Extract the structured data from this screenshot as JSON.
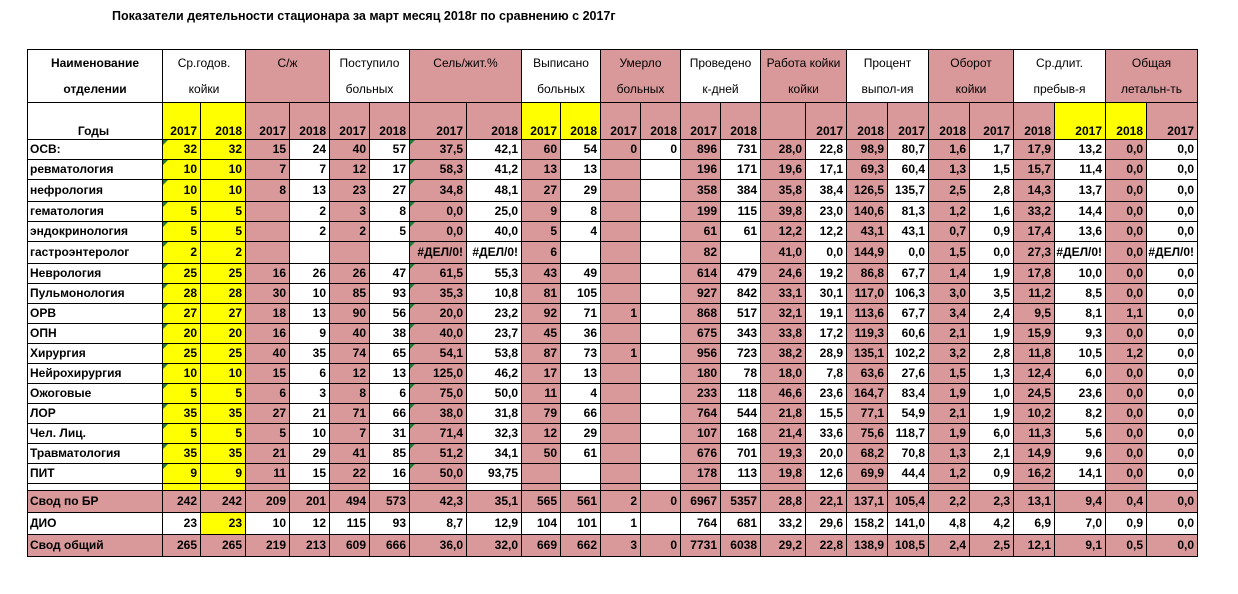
{
  "title": "Показатели деятельности стационара за март месяц 2018г по сравнению с 2017г",
  "header": {
    "row1": [
      "Наименование",
      "Ср.годов.",
      "С/ж",
      "Поступило",
      "Сель/жит.%",
      "Выписано",
      "Умерло",
      "Проведено",
      "Работа койки",
      "Процент",
      "Оборот",
      "Ср.длит.",
      "Общая"
    ],
    "row2": [
      "отделении",
      "койки",
      "",
      "больных",
      "",
      "больных",
      "больных",
      "к-дней",
      "койки",
      "выпол-ия",
      "койки",
      "пребыв-я",
      "летальн-ть"
    ],
    "years_label": "Годы",
    "years": [
      "2017",
      "2018",
      "2017",
      "2018",
      "2017",
      "2018",
      "2017",
      "2018",
      "2017",
      "2018",
      "2017",
      "2018",
      "2017",
      "2018",
      "",
      "2017",
      "2018",
      "2017",
      "2018",
      "2017",
      "2018",
      "2017",
      "2018",
      "2017"
    ]
  },
  "rows": [
    {
      "name": "ОСВ:",
      "cells": [
        "32",
        "32",
        "15",
        "24",
        "40",
        "57",
        "37,5",
        "42,1",
        "60",
        "54",
        "0",
        "0",
        "896",
        "731",
        "28,0",
        "22,8",
        "98,9",
        "80,7",
        "1,6",
        "1,7",
        "17,9",
        "13,2",
        "0,0",
        "0,0"
      ]
    },
    {
      "name": " ревматология",
      "cells": [
        "10",
        "10",
        "7",
        "7",
        "12",
        "17",
        "58,3",
        "41,2",
        "13",
        "13",
        "",
        "",
        "196",
        "171",
        "19,6",
        "17,1",
        "69,3",
        "60,4",
        "1,3",
        "1,5",
        "15,7",
        "11,4",
        "0,0",
        "0,0"
      ]
    },
    {
      "name": "нефрология",
      "cells": [
        "10",
        "10",
        "8",
        "13",
        "23",
        "27",
        "34,8",
        "48,1",
        "27",
        "29",
        "",
        "",
        "358",
        "384",
        "35,8",
        "38,4",
        "126,5",
        "135,7",
        "2,5",
        "2,8",
        "14,3",
        "13,7",
        "0,0",
        "0,0"
      ]
    },
    {
      "name": "гематология",
      "cells": [
        "5",
        "5",
        "",
        "2",
        "3",
        "8",
        "0,0",
        "25,0",
        "9",
        "8",
        "",
        "",
        "199",
        "115",
        "39,8",
        "23,0",
        "140,6",
        "81,3",
        "1,2",
        "1,6",
        "33,2",
        "14,4",
        "0,0",
        "0,0"
      ]
    },
    {
      "name": "эндокринология",
      "cells": [
        "5",
        "5",
        "",
        "2",
        "2",
        "5",
        "0,0",
        "40,0",
        "5",
        "4",
        "",
        "",
        "61",
        "61",
        "12,2",
        "12,2",
        "43,1",
        "43,1",
        "0,7",
        "0,9",
        "17,4",
        "13,6",
        "0,0",
        "0,0"
      ]
    },
    {
      "name": "гастроэнтеролог",
      "cells": [
        "2",
        "2",
        "",
        "",
        "",
        "",
        "#ДЕЛ/0!",
        "#ДЕЛ/0!",
        "6",
        "",
        "",
        "",
        "82",
        "",
        "41,0",
        "0,0",
        "144,9",
        "0,0",
        "1,5",
        "0,0",
        "27,3",
        "#ДЕЛ/0!",
        "0,0",
        "#ДЕЛ/0!"
      ]
    },
    {
      "name": "Неврология",
      "cells": [
        "25",
        "25",
        "16",
        "26",
        "26",
        "47",
        "61,5",
        "55,3",
        "43",
        "49",
        "",
        "",
        "614",
        "479",
        "24,6",
        "19,2",
        "86,8",
        "67,7",
        "1,4",
        "1,9",
        "17,8",
        "10,0",
        "0,0",
        "0,0"
      ]
    },
    {
      "name": "Пульмонология",
      "cells": [
        "28",
        "28",
        "30",
        "10",
        "85",
        "93",
        "35,3",
        "10,8",
        "81",
        "105",
        "",
        "",
        "927",
        "842",
        "33,1",
        "30,1",
        "117,0",
        "106,3",
        "3,0",
        "3,5",
        "11,2",
        "8,5",
        "0,0",
        "0,0"
      ]
    },
    {
      "name": "ОРВ",
      "cells": [
        "27",
        "27",
        "18",
        "13",
        "90",
        "56",
        "20,0",
        "23,2",
        "92",
        "71",
        "1",
        "",
        "868",
        "517",
        "32,1",
        "19,1",
        "113,6",
        "67,7",
        "3,4",
        "2,4",
        "9,5",
        "8,1",
        "1,1",
        "0,0"
      ]
    },
    {
      "name": "ОПН",
      "cells": [
        "20",
        "20",
        "16",
        "9",
        "40",
        "38",
        "40,0",
        "23,7",
        "45",
        "36",
        "",
        "",
        "675",
        "343",
        "33,8",
        "17,2",
        "119,3",
        "60,6",
        "2,1",
        "1,9",
        "15,9",
        "9,3",
        "0,0",
        "0,0"
      ]
    },
    {
      "name": "Хирургия",
      "cells": [
        "25",
        "25",
        "40",
        "35",
        "74",
        "65",
        "54,1",
        "53,8",
        "87",
        "73",
        "1",
        "",
        "956",
        "723",
        "38,2",
        "28,9",
        "135,1",
        "102,2",
        "3,2",
        "2,8",
        "11,8",
        "10,5",
        "1,2",
        "0,0"
      ]
    },
    {
      "name": "Нейрохирургия",
      "cells": [
        "10",
        "10",
        "15",
        "6",
        "12",
        "13",
        "125,0",
        "46,2",
        "17",
        "13",
        "",
        "",
        "180",
        "78",
        "18,0",
        "7,8",
        "63,6",
        "27,6",
        "1,5",
        "1,3",
        "12,4",
        "6,0",
        "0,0",
        "0,0"
      ]
    },
    {
      "name": "Ожоговые",
      "cells": [
        "5",
        "5",
        "6",
        "3",
        "8",
        "6",
        "75,0",
        "50,0",
        "11",
        "4",
        "",
        "",
        "233",
        "118",
        "46,6",
        "23,6",
        "164,7",
        "83,4",
        "1,9",
        "1,0",
        "24,5",
        "23,6",
        "0,0",
        "0,0"
      ]
    },
    {
      "name": "ЛОР",
      "cells": [
        "35",
        "35",
        "27",
        "21",
        "71",
        "66",
        "38,0",
        "31,8",
        "79",
        "66",
        "",
        "",
        "764",
        "544",
        "21,8",
        "15,5",
        "77,1",
        "54,9",
        "2,1",
        "1,9",
        "10,2",
        "8,2",
        "0,0",
        "0,0"
      ]
    },
    {
      "name": "Чел. Лиц.",
      "cells": [
        "5",
        "5",
        "5",
        "10",
        "7",
        "31",
        "71,4",
        "32,3",
        "12",
        "29",
        "",
        "",
        "107",
        "168",
        "21,4",
        "33,6",
        "75,6",
        "118,7",
        "1,9",
        "6,0",
        "11,3",
        "5,6",
        "0,0",
        "0,0"
      ]
    },
    {
      "name": "Травматология",
      "cells": [
        "35",
        "35",
        "21",
        "29",
        "41",
        "85",
        "51,2",
        "34,1",
        "50",
        "61",
        "",
        "",
        "676",
        "701",
        "19,3",
        "20,0",
        "68,2",
        "70,8",
        "1,3",
        "2,1",
        "14,9",
        "9,6",
        "0,0",
        "0,0"
      ]
    },
    {
      "name": "ПИТ",
      "cells": [
        "9",
        "9",
        "11",
        "15",
        "22",
        "16",
        "50,0",
        "93,75",
        "",
        "",
        "",
        "",
        "178",
        "113",
        "19,8",
        "12,6",
        "69,9",
        "44,4",
        "1,2",
        "0,9",
        "16,2",
        "14,1",
        "0,0",
        "0,0"
      ]
    },
    {
      "name": "Свод по БР",
      "cells": [
        "242",
        "242",
        "209",
        "201",
        "494",
        "573",
        "42,3",
        "35,1",
        "565",
        "561",
        "2",
        "0",
        "6967",
        "5357",
        "28,8",
        "22,1",
        "137,1",
        "105,4",
        "2,2",
        "2,3",
        "13,1",
        "9,4",
        "0,4",
        "0,0"
      ]
    },
    {
      "name": "ДИО",
      "cells": [
        "23",
        "23",
        "10",
        "12",
        "115",
        "93",
        "8,7",
        "12,9",
        "104",
        "101",
        "1",
        "",
        "764",
        "681",
        "33,2",
        "29,6",
        "158,2",
        "141,0",
        "4,8",
        "4,2",
        "6,9",
        "7,0",
        "0,9",
        "0,0"
      ]
    },
    {
      "name": "Свод общий",
      "cells": [
        "265",
        "265",
        "219",
        "213",
        "609",
        "666",
        "36,0",
        "32,0",
        "669",
        "662",
        "3",
        "0",
        "7731",
        "6038",
        "29,2",
        "22,8",
        "138,9",
        "108,5",
        "2,4",
        "2,5",
        "12,1",
        "9,1",
        "0,5",
        "0,0"
      ]
    }
  ],
  "colors": {
    "pink": "#d9999b",
    "yellow": "#ffff00",
    "white": "#ffffff",
    "mark": "#1e7b34"
  }
}
